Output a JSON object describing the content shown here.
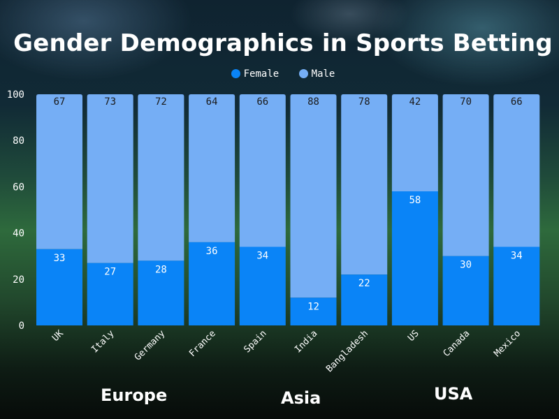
{
  "chart_data": {
    "type": "bar",
    "stacked": true,
    "title": "Gender Demographics in Sports Betting",
    "categories": [
      "UK",
      "Italy",
      "Germany",
      "France",
      "Spain",
      "India",
      "Bangladesh",
      "US",
      "Canada",
      "Mexico"
    ],
    "series": [
      {
        "name": "Female",
        "color": "#0a84f7",
        "values": [
          33,
          27,
          28,
          36,
          34,
          12,
          22,
          58,
          30,
          34
        ]
      },
      {
        "name": "Male",
        "color": "#75aef5",
        "values": [
          67,
          73,
          72,
          64,
          66,
          88,
          78,
          42,
          70,
          66
        ]
      }
    ],
    "yticks": [
      "0",
      "20",
      "40",
      "60",
      "80",
      "100"
    ],
    "ylim": [
      0,
      100
    ],
    "grid": false,
    "legend_position": "top-center",
    "groups": [
      {
        "label": "Europe"
      },
      {
        "label": "Asia"
      },
      {
        "label": "USA"
      }
    ]
  }
}
